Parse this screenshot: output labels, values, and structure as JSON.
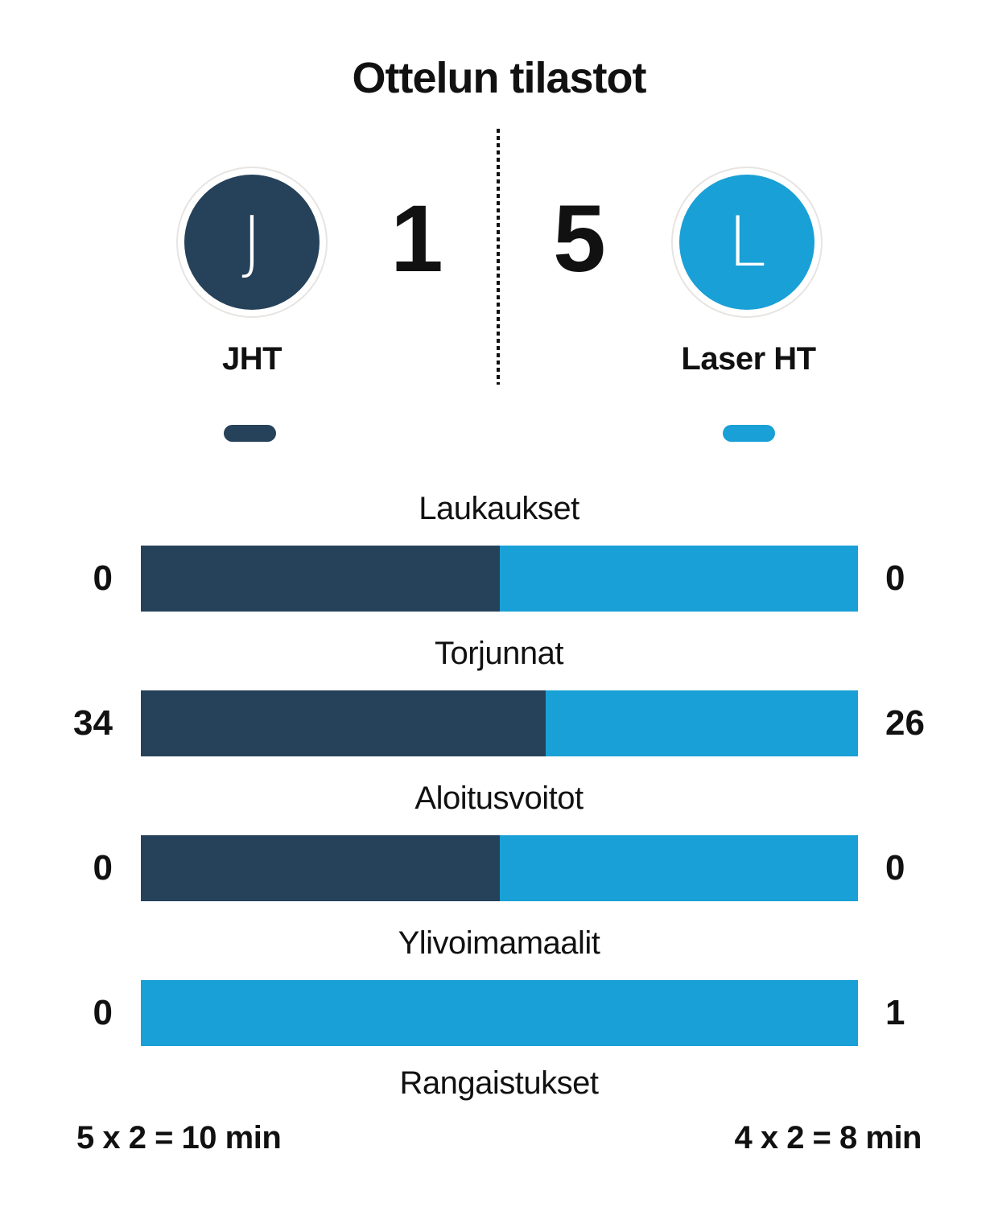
{
  "title": "Ottelun tilastot",
  "colors": {
    "home": "#26425A",
    "away": "#19A0D6"
  },
  "scoreboard": {
    "home": {
      "name": "JHT",
      "initial": "J",
      "score": "1"
    },
    "away": {
      "name": "Laser HT",
      "initial": "L",
      "score": "5"
    }
  },
  "chart_data": {
    "type": "bar",
    "title": "Ottelun tilastot",
    "categories": [
      "Laukaukset",
      "Torjunnat",
      "Aloitusvoitot",
      "Ylivoimamaalit"
    ],
    "series": [
      {
        "name": "JHT",
        "values": [
          0,
          34,
          0,
          0
        ]
      },
      {
        "name": "Laser HT",
        "values": [
          0,
          26,
          0,
          1
        ]
      }
    ],
    "rows": [
      {
        "label": "Laukaukset",
        "left": "0",
        "right": "0",
        "left_pct": 50
      },
      {
        "label": "Torjunnat",
        "left": "34",
        "right": "26",
        "left_pct": 56.5
      },
      {
        "label": "Aloitusvoitot",
        "left": "0",
        "right": "0",
        "left_pct": 50
      },
      {
        "label": "Ylivoimamaalit",
        "left": "0",
        "right": "1",
        "left_pct": 0
      }
    ],
    "penalties": {
      "label": "Rangaistukset",
      "left": "5 x 2 = 10 min",
      "right": "4 x 2 = 8 min"
    }
  }
}
